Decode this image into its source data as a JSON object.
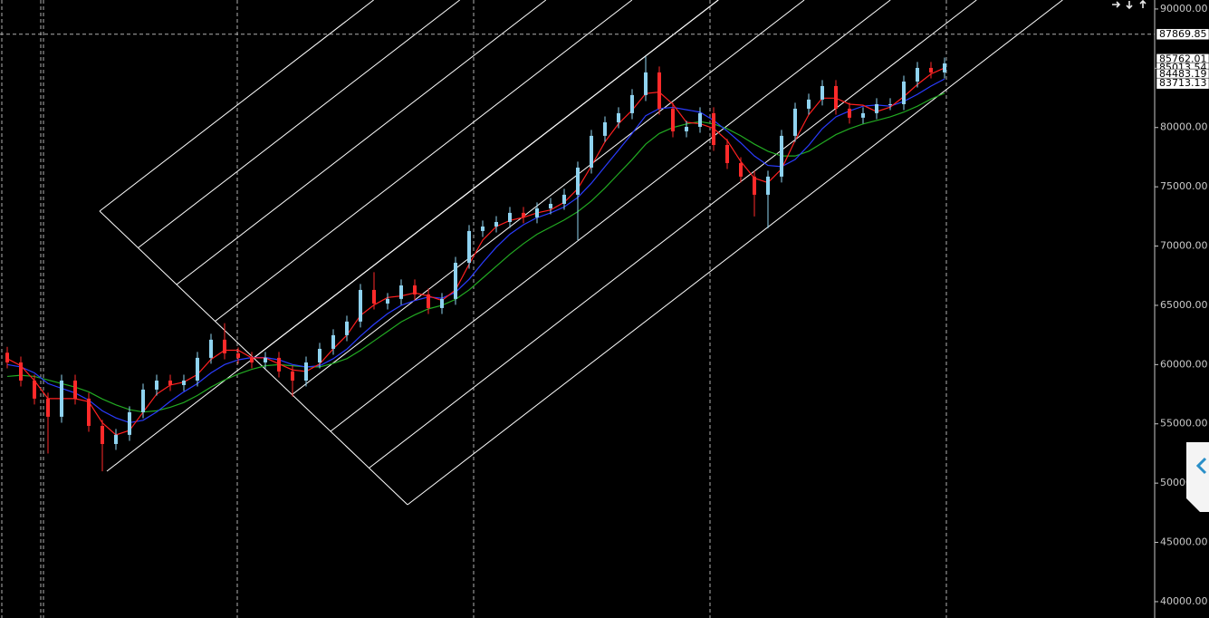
{
  "chart_data": {
    "type": "candlestick",
    "ylim": [
      38620,
      90760
    ],
    "yticks": [
      {
        "value": 90000,
        "label": "90000.00"
      },
      {
        "value": 85000,
        "label": "85000.00"
      },
      {
        "value": 80000,
        "label": "80000.00"
      },
      {
        "value": 75000,
        "label": "75000.00"
      },
      {
        "value": 70000,
        "label": "70000.00"
      },
      {
        "value": 65000,
        "label": "65000.00"
      },
      {
        "value": 60000,
        "label": "60000.00"
      },
      {
        "value": 55000,
        "label": "55000.00"
      },
      {
        "value": 50000,
        "label": "50000.00"
      },
      {
        "value": 45000,
        "label": "45000.00"
      },
      {
        "value": 40000,
        "label": "40000.00"
      }
    ],
    "hline": 87869.85,
    "price_labels": [
      85762.01,
      85013.54,
      84483.19,
      83713.13
    ],
    "bull_color": "#8fd3f0",
    "bear_color": "#ff2a2a",
    "open": [
      61000,
      60180,
      58650,
      57130,
      55600,
      58650,
      57130,
      54830,
      53300,
      54070,
      55980,
      57890,
      58650,
      58270,
      58650,
      60570,
      62100,
      60950,
      60570,
      60180,
      60570,
      59420,
      58650,
      60180,
      61330,
      62480,
      63630,
      66300,
      65150,
      65540,
      66680,
      65920,
      64770,
      65540,
      68590,
      71270,
      71650,
      72030,
      72800,
      72420,
      73180,
      73560,
      74330,
      76620,
      79300,
      80440,
      81210,
      82740,
      84650,
      81590,
      79680,
      80060,
      81210,
      78530,
      77000,
      75860,
      74330,
      75860,
      79300,
      81590,
      82360,
      83500,
      81590,
      80830,
      81210,
      81970,
      81970,
      83880,
      85030,
      84650
    ],
    "high": [
      61500,
      60680,
      59150,
      57630,
      59150,
      59150,
      57630,
      55330,
      54570,
      56480,
      58390,
      59150,
      59150,
      59150,
      61070,
      62600,
      63500,
      61450,
      61070,
      61070,
      61070,
      59920,
      60680,
      61830,
      62980,
      64130,
      66800,
      67800,
      66040,
      67180,
      67180,
      66420,
      66040,
      69090,
      71770,
      72150,
      72530,
      73300,
      73300,
      73680,
      74060,
      74830,
      77120,
      79800,
      80940,
      81710,
      83240,
      86000,
      85150,
      82090,
      80560,
      81710,
      81710,
      79030,
      77500,
      76360,
      76360,
      79800,
      82090,
      82860,
      84000,
      84000,
      82090,
      81710,
      82470,
      82470,
      84380,
      85530,
      85530,
      85910
    ],
    "low": [
      59680,
      58150,
      56630,
      52500,
      55100,
      56630,
      54330,
      51000,
      52800,
      53570,
      55480,
      57390,
      57770,
      57770,
      58150,
      60070,
      60450,
      60070,
      59680,
      59680,
      58920,
      57300,
      58150,
      59680,
      60830,
      61980,
      63130,
      64650,
      64650,
      65040,
      65420,
      64270,
      64270,
      65040,
      68090,
      70770,
      71150,
      71530,
      71920,
      71920,
      72680,
      73060,
      70500,
      76120,
      78800,
      79940,
      80710,
      82240,
      81090,
      79180,
      79180,
      79560,
      78030,
      76500,
      75360,
      72500,
      71500,
      75360,
      78800,
      81090,
      81860,
      81090,
      80330,
      80330,
      80710,
      81470,
      81470,
      83380,
      84150,
      84150
    ],
    "close": [
      60180,
      58650,
      57130,
      55600,
      58650,
      57130,
      54830,
      53300,
      54070,
      55980,
      57890,
      58650,
      58270,
      58650,
      60570,
      62100,
      60950,
      60570,
      60180,
      60570,
      59420,
      58650,
      60180,
      61330,
      62480,
      63630,
      66300,
      65150,
      65540,
      66680,
      65920,
      64770,
      65540,
      68590,
      71270,
      71650,
      72030,
      72800,
      72420,
      73180,
      73560,
      74330,
      76620,
      79300,
      80440,
      81210,
      82740,
      84650,
      81590,
      79680,
      80060,
      81210,
      78530,
      77000,
      75860,
      74330,
      75860,
      79300,
      81590,
      82360,
      83500,
      81590,
      80830,
      81210,
      81970,
      81970,
      83880,
      85030,
      84650,
      85410
    ],
    "overlays": [
      {
        "color": "#22aa22",
        "values": [
          59000,
          59100,
          59000,
          58700,
          58400,
          58100,
          57700,
          57100,
          56600,
          56200,
          56000,
          56100,
          56400,
          56800,
          57400,
          58100,
          58700,
          59200,
          59600,
          59900,
          60000,
          59900,
          59800,
          59800,
          60100,
          60500,
          61200,
          62000,
          62800,
          63600,
          64200,
          64700,
          65000,
          65500,
          66300,
          67300,
          68300,
          69300,
          70200,
          71000,
          71600,
          72200,
          72900,
          73800,
          74900,
          76100,
          77300,
          78600,
          79500,
          80000,
          80300,
          80500,
          80300,
          79900,
          79300,
          78600,
          78000,
          77600,
          77600,
          78000,
          78700,
          79400,
          79900,
          80300,
          80600,
          80900,
          81300,
          81800,
          82400,
          82900
        ]
      },
      {
        "color": "#2a3cff",
        "values": [
          60000,
          59800,
          59300,
          58400,
          58000,
          57600,
          57000,
          56100,
          55500,
          55100,
          55300,
          56000,
          56900,
          57700,
          58400,
          59300,
          60000,
          60400,
          60600,
          60600,
          60400,
          60000,
          59800,
          59900,
          60500,
          61300,
          62400,
          63400,
          64300,
          65000,
          65400,
          65700,
          65600,
          66100,
          67200,
          68600,
          69900,
          71000,
          71800,
          72400,
          72800,
          73300,
          74100,
          75300,
          76700,
          78100,
          79500,
          81000,
          81600,
          81700,
          81500,
          81300,
          80600,
          79700,
          78700,
          77600,
          76800,
          76700,
          77300,
          78500,
          79900,
          80900,
          81400,
          81800,
          81900,
          81800,
          82200,
          82800,
          83500,
          84100
        ]
      },
      {
        "color": "#ff2020",
        "values": [
          60500,
          59900,
          58650,
          57130,
          57130,
          57130,
          56870,
          55090,
          54070,
          54450,
          55980,
          57510,
          58270,
          58520,
          59160,
          60440,
          61210,
          61210,
          60570,
          60570,
          60060,
          59550,
          59420,
          60050,
          61330,
          62480,
          64140,
          65030,
          65660,
          65790,
          66050,
          65790,
          65410,
          66300,
          68470,
          70500,
          71650,
          72160,
          72420,
          72800,
          73050,
          73690,
          74840,
          76750,
          78790,
          80320,
          81460,
          82870,
          82990,
          81970,
          80440,
          80320,
          79930,
          78910,
          77130,
          75730,
          75350,
          76500,
          78920,
          81080,
          82480,
          82480,
          81970,
          81880,
          81340,
          81720,
          82610,
          83630,
          84520,
          85030
        ]
      }
    ]
  }
}
